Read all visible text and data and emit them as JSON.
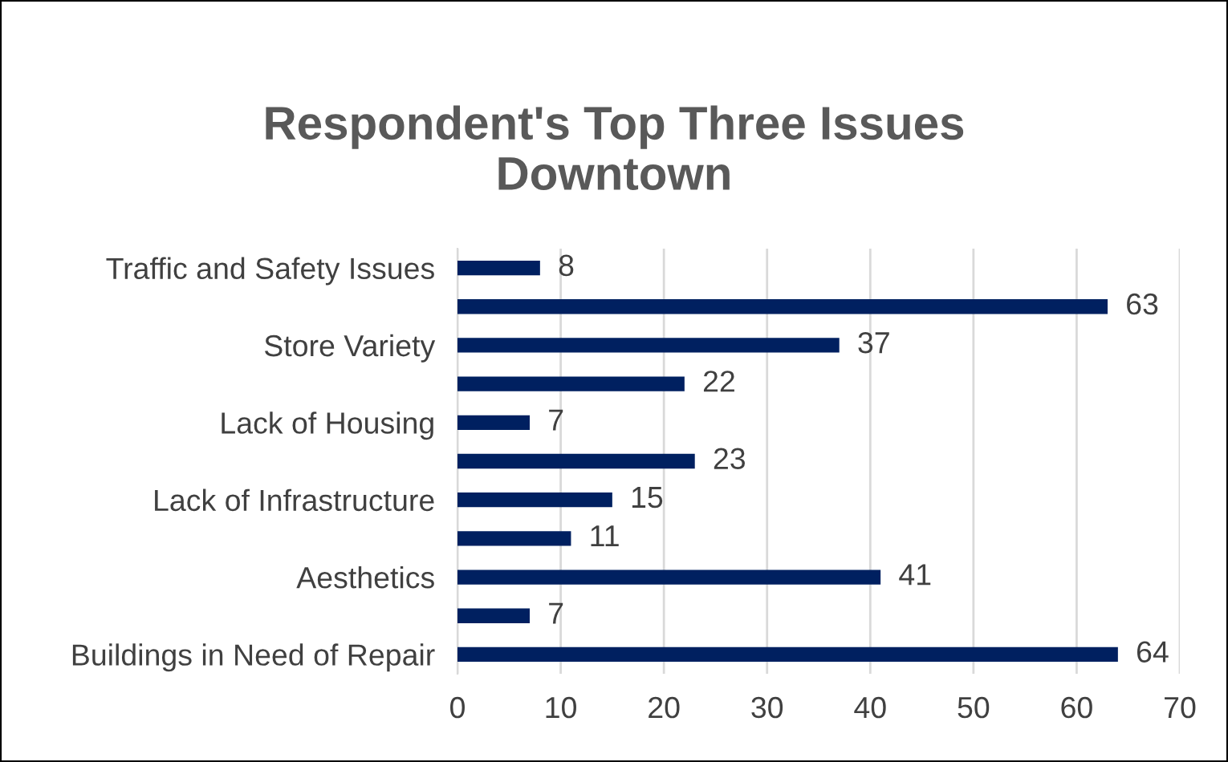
{
  "chart_data": {
    "type": "bar",
    "orientation": "horizontal",
    "title": "Respondent's Top Three Issues\nDowntown",
    "categories": [
      "Traffic and Safety Issues",
      null,
      "Store Variety",
      null,
      "Lack of Housing",
      null,
      "Lack of Infrastructure",
      null,
      "Aesthetics",
      null,
      "Buildings in Need of Repair"
    ],
    "values": [
      8,
      63,
      37,
      22,
      7,
      23,
      15,
      11,
      41,
      7,
      64
    ],
    "color": "#002060",
    "xlim": [
      0,
      70
    ],
    "xticks": [
      0,
      10,
      20,
      30,
      40,
      50,
      60,
      70
    ],
    "grid": "x",
    "data_labels": true
  }
}
